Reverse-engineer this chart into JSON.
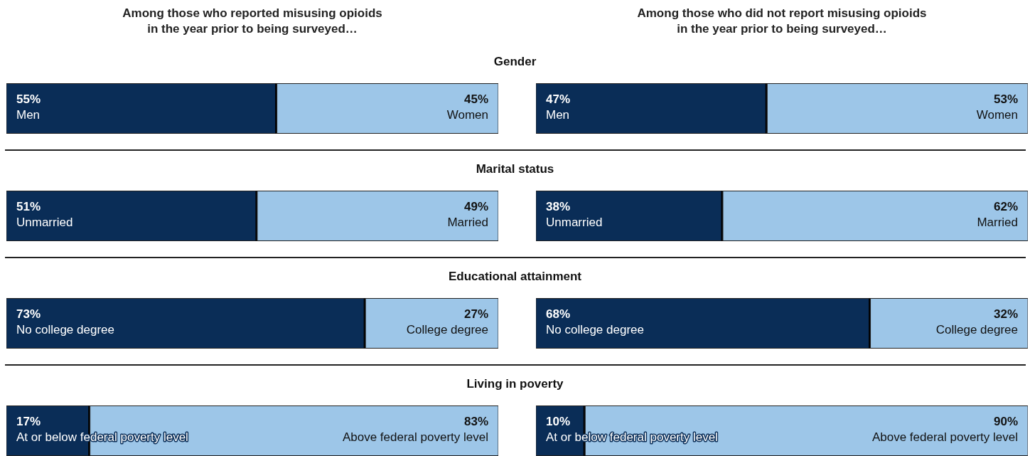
{
  "chart_data": [
    {
      "type": "bar",
      "orientation": "horizontal",
      "stacked": true,
      "title": "Among those who reported misusing opioids\nin the year prior to being surveyed…",
      "categories": [
        "Gender",
        "Marital status",
        "Educational attainment",
        "Living in poverty"
      ],
      "xlim": [
        0,
        100
      ],
      "tick_labels": false,
      "series": [
        {
          "color": "#0a2d57",
          "values": [
            55,
            51,
            73,
            17
          ],
          "value_labels": [
            "55% Men",
            "51% Unmarried",
            "73% No college degree",
            "17% At or below federal poverty level"
          ]
        },
        {
          "color": "#9dc6e8",
          "values": [
            45,
            49,
            27,
            83
          ],
          "value_labels": [
            "45% Women",
            "49% Married",
            "27% College degree",
            "83% Above federal poverty level"
          ]
        }
      ]
    },
    {
      "type": "bar",
      "orientation": "horizontal",
      "stacked": true,
      "title": "Among those who did not report misusing opioids\nin the year prior to being surveyed…",
      "categories": [
        null,
        null,
        null,
        null
      ],
      "xlim": [
        0,
        100
      ],
      "tick_labels": false,
      "series": [
        {
          "color": "#0a2d57",
          "values": [
            47,
            38,
            68,
            10
          ],
          "value_labels": [
            "47% Men",
            "38% Unmarried",
            "68% No college degree",
            "10% At or below federal poverty level"
          ]
        },
        {
          "color": "#9dc6e8",
          "values": [
            53,
            62,
            32,
            90
          ],
          "value_labels": [
            "53% Women",
            "62% Married",
            "32% College degree",
            "90% Above federal poverty level"
          ]
        }
      ]
    }
  ]
}
